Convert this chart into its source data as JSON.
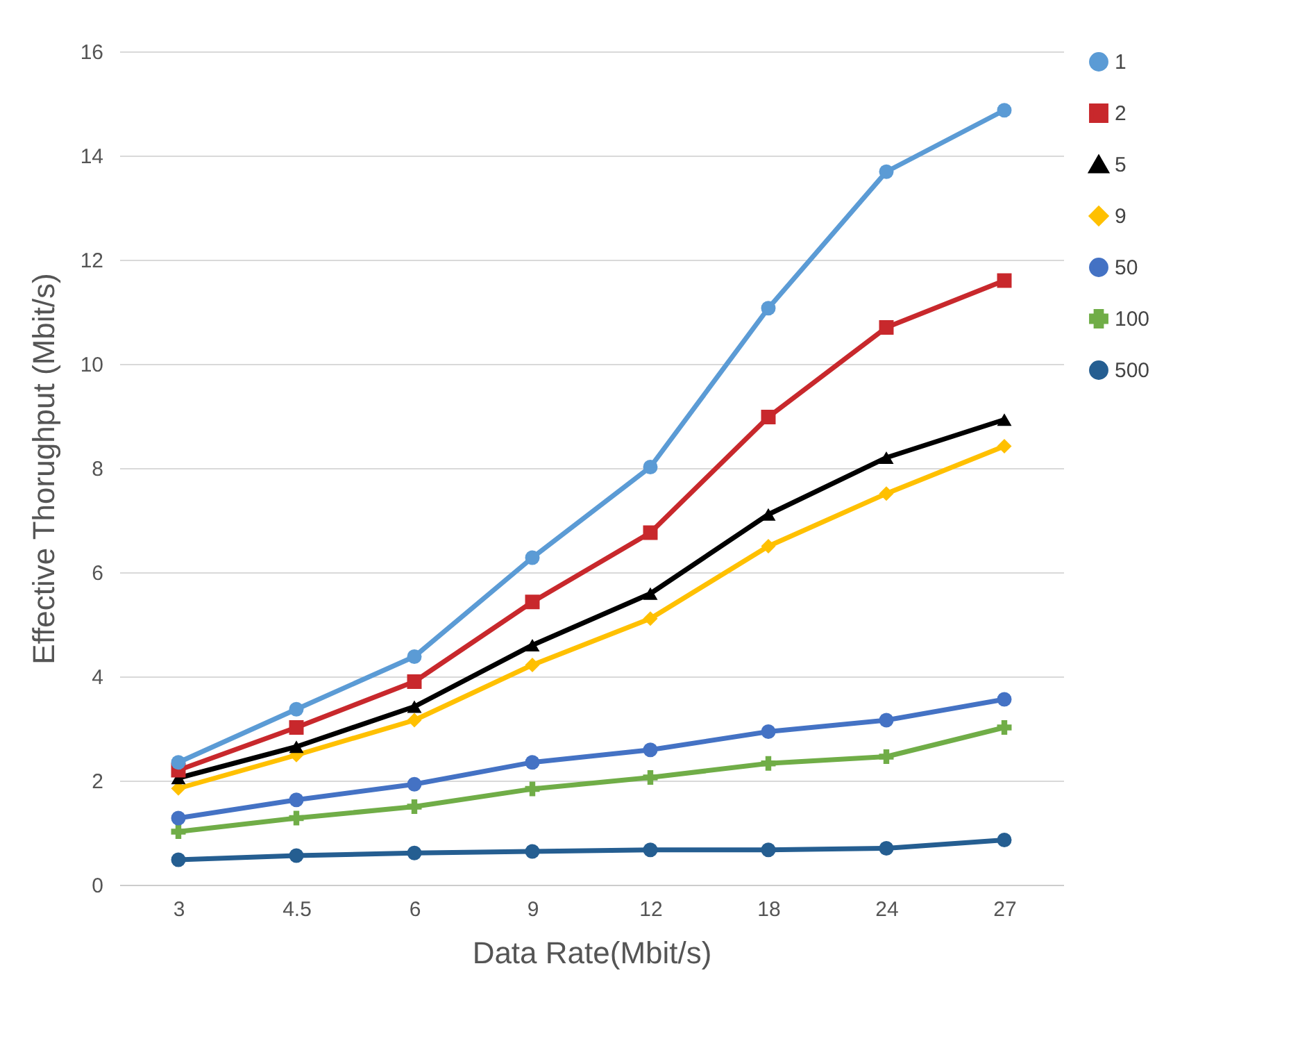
{
  "chart_data": {
    "type": "line",
    "xlabel": "Data Rate(Mbit/s)",
    "ylabel": "Effective Thorughput (Mbit/s)",
    "categories": [
      "3",
      "4.5",
      "6",
      "9",
      "12",
      "18",
      "24",
      "27"
    ],
    "series": [
      {
        "name": "1",
        "color": "#5b9bd5",
        "marker": "circle",
        "values": [
          2.35,
          3.37,
          4.38,
          6.28,
          8.02,
          11.07,
          13.69,
          14.87
        ]
      },
      {
        "name": "2",
        "color": "#c8282c",
        "marker": "square",
        "values": [
          2.2,
          3.02,
          3.9,
          5.43,
          6.76,
          8.98,
          10.7,
          11.6
        ]
      },
      {
        "name": "5",
        "color": "#000000",
        "marker": "triangle",
        "values": [
          2.05,
          2.65,
          3.42,
          4.6,
          5.59,
          7.11,
          8.2,
          8.93
        ]
      },
      {
        "name": "9",
        "color": "#ffc000",
        "marker": "diamond",
        "values": [
          1.85,
          2.49,
          3.16,
          4.22,
          5.11,
          6.5,
          7.51,
          8.42
        ]
      },
      {
        "name": "50",
        "color": "#4472c4",
        "marker": "circle",
        "values": [
          1.28,
          1.63,
          1.93,
          2.35,
          2.59,
          2.94,
          3.16,
          3.56
        ]
      },
      {
        "name": "100",
        "color": "#70ad47",
        "marker": "cross",
        "values": [
          1.02,
          1.28,
          1.5,
          1.84,
          2.06,
          2.33,
          2.46,
          3.02
        ]
      },
      {
        "name": "500",
        "color": "#255e91",
        "marker": "circle",
        "values": [
          0.48,
          0.56,
          0.61,
          0.64,
          0.67,
          0.67,
          0.7,
          0.86
        ]
      }
    ],
    "ylim": [
      0,
      16
    ],
    "yticks": [
      0,
      2,
      4,
      6,
      8,
      10,
      12,
      14,
      16
    ],
    "grid": "y",
    "legend": "right",
    "line_style": "solid"
  }
}
